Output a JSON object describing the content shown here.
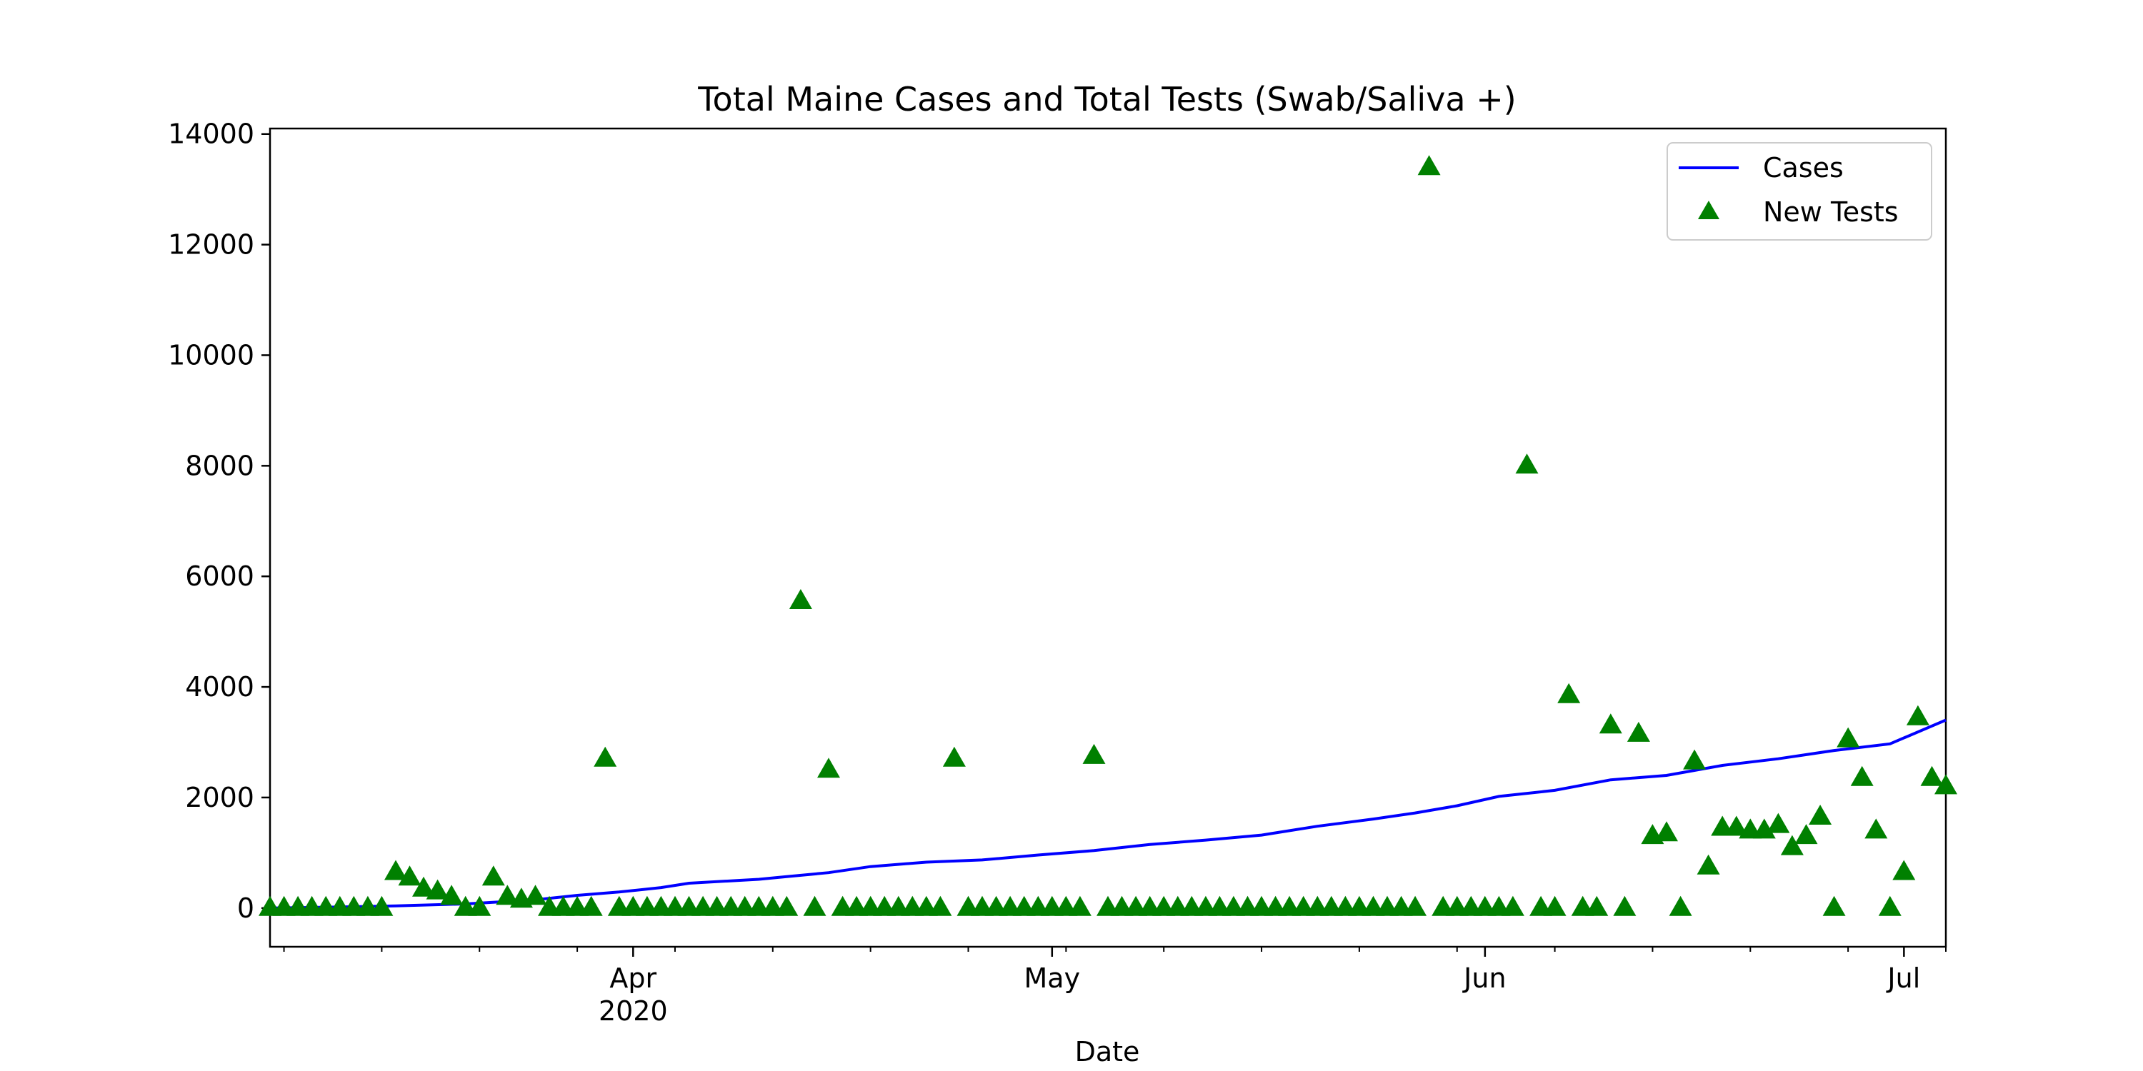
{
  "chart_data": {
    "type": "scatter",
    "title": "Total Maine Cases and Total Tests (Swab/Saliva +)",
    "xlabel": "Date",
    "ylabel": "",
    "x_range": [
      "2020-03-06",
      "2020-07-04"
    ],
    "ylim": [
      -700,
      14100
    ],
    "grid": false,
    "legend_placement": "top-right",
    "colors": {
      "cases": "#0000ff",
      "tests": "#008000"
    },
    "x_ticks": [
      {
        "date": "2020-04-01",
        "label": "Apr",
        "sublabel": "2020"
      },
      {
        "date": "2020-05-01",
        "label": "May",
        "sublabel": ""
      },
      {
        "date": "2020-06-01",
        "label": "Jun",
        "sublabel": ""
      },
      {
        "date": "2020-07-01",
        "label": "Jul",
        "sublabel": ""
      }
    ],
    "y_ticks": [
      0,
      2000,
      4000,
      6000,
      8000,
      10000,
      12000,
      14000
    ],
    "series": [
      {
        "name": "Cases",
        "type": "line",
        "points": [
          [
            "2020-03-06",
            0
          ],
          [
            "2020-03-10",
            15
          ],
          [
            "2020-03-15",
            40
          ],
          [
            "2020-03-20",
            75
          ],
          [
            "2020-03-25",
            150
          ],
          [
            "2020-03-28",
            230
          ],
          [
            "2020-03-31",
            290
          ],
          [
            "2020-04-03",
            370
          ],
          [
            "2020-04-05",
            450
          ],
          [
            "2020-04-10",
            520
          ],
          [
            "2020-04-12",
            570
          ],
          [
            "2020-04-15",
            640
          ],
          [
            "2020-04-18",
            750
          ],
          [
            "2020-04-22",
            830
          ],
          [
            "2020-04-26",
            870
          ],
          [
            "2020-04-30",
            960
          ],
          [
            "2020-05-04",
            1040
          ],
          [
            "2020-05-08",
            1150
          ],
          [
            "2020-05-12",
            1230
          ],
          [
            "2020-05-16",
            1320
          ],
          [
            "2020-05-20",
            1480
          ],
          [
            "2020-05-24",
            1610
          ],
          [
            "2020-05-27",
            1720
          ],
          [
            "2020-05-30",
            1850
          ],
          [
            "2020-06-02",
            2020
          ],
          [
            "2020-06-06",
            2130
          ],
          [
            "2020-06-10",
            2320
          ],
          [
            "2020-06-14",
            2400
          ],
          [
            "2020-06-18",
            2580
          ],
          [
            "2020-06-22",
            2700
          ],
          [
            "2020-06-26",
            2850
          ],
          [
            "2020-06-30",
            2970
          ],
          [
            "2020-07-04",
            3400
          ]
        ]
      },
      {
        "name": "New Tests",
        "type": "scatter",
        "marker": "triangle",
        "points": [
          [
            "2020-03-06",
            0
          ],
          [
            "2020-03-07",
            0
          ],
          [
            "2020-03-08",
            0
          ],
          [
            "2020-03-09",
            0
          ],
          [
            "2020-03-10",
            0
          ],
          [
            "2020-03-11",
            0
          ],
          [
            "2020-03-12",
            0
          ],
          [
            "2020-03-13",
            0
          ],
          [
            "2020-03-14",
            0
          ],
          [
            "2020-03-15",
            650
          ],
          [
            "2020-03-16",
            550
          ],
          [
            "2020-03-17",
            350
          ],
          [
            "2020-03-18",
            300
          ],
          [
            "2020-03-19",
            200
          ],
          [
            "2020-03-20",
            0
          ],
          [
            "2020-03-21",
            0
          ],
          [
            "2020-03-22",
            550
          ],
          [
            "2020-03-23",
            200
          ],
          [
            "2020-03-24",
            150
          ],
          [
            "2020-03-25",
            200
          ],
          [
            "2020-03-26",
            0
          ],
          [
            "2020-03-27",
            0
          ],
          [
            "2020-03-28",
            0
          ],
          [
            "2020-03-29",
            0
          ],
          [
            "2020-03-30",
            2700
          ],
          [
            "2020-03-31",
            0
          ],
          [
            "2020-04-01",
            0
          ],
          [
            "2020-04-02",
            0
          ],
          [
            "2020-04-03",
            0
          ],
          [
            "2020-04-04",
            0
          ],
          [
            "2020-04-05",
            0
          ],
          [
            "2020-04-06",
            0
          ],
          [
            "2020-04-07",
            0
          ],
          [
            "2020-04-08",
            0
          ],
          [
            "2020-04-09",
            0
          ],
          [
            "2020-04-10",
            0
          ],
          [
            "2020-04-11",
            0
          ],
          [
            "2020-04-12",
            0
          ],
          [
            "2020-04-13",
            5550
          ],
          [
            "2020-04-14",
            0
          ],
          [
            "2020-04-15",
            2500
          ],
          [
            "2020-04-16",
            0
          ],
          [
            "2020-04-17",
            0
          ],
          [
            "2020-04-18",
            0
          ],
          [
            "2020-04-19",
            0
          ],
          [
            "2020-04-20",
            0
          ],
          [
            "2020-04-21",
            0
          ],
          [
            "2020-04-22",
            0
          ],
          [
            "2020-04-23",
            0
          ],
          [
            "2020-04-24",
            2700
          ],
          [
            "2020-04-25",
            0
          ],
          [
            "2020-04-26",
            0
          ],
          [
            "2020-04-27",
            0
          ],
          [
            "2020-04-28",
            0
          ],
          [
            "2020-04-29",
            0
          ],
          [
            "2020-04-30",
            0
          ],
          [
            "2020-05-01",
            0
          ],
          [
            "2020-05-02",
            0
          ],
          [
            "2020-05-03",
            0
          ],
          [
            "2020-05-04",
            2750
          ],
          [
            "2020-05-05",
            0
          ],
          [
            "2020-05-06",
            0
          ],
          [
            "2020-05-07",
            0
          ],
          [
            "2020-05-08",
            0
          ],
          [
            "2020-05-09",
            0
          ],
          [
            "2020-05-10",
            0
          ],
          [
            "2020-05-11",
            0
          ],
          [
            "2020-05-12",
            0
          ],
          [
            "2020-05-13",
            0
          ],
          [
            "2020-05-14",
            0
          ],
          [
            "2020-05-15",
            0
          ],
          [
            "2020-05-16",
            0
          ],
          [
            "2020-05-17",
            0
          ],
          [
            "2020-05-18",
            0
          ],
          [
            "2020-05-19",
            0
          ],
          [
            "2020-05-20",
            0
          ],
          [
            "2020-05-21",
            0
          ],
          [
            "2020-05-22",
            0
          ],
          [
            "2020-05-23",
            0
          ],
          [
            "2020-05-24",
            0
          ],
          [
            "2020-05-25",
            0
          ],
          [
            "2020-05-26",
            0
          ],
          [
            "2020-05-27",
            0
          ],
          [
            "2020-05-28",
            13400
          ],
          [
            "2020-05-29",
            0
          ],
          [
            "2020-05-30",
            0
          ],
          [
            "2020-05-31",
            0
          ],
          [
            "2020-06-01",
            0
          ],
          [
            "2020-06-02",
            0
          ],
          [
            "2020-06-03",
            0
          ],
          [
            "2020-06-04",
            8000
          ],
          [
            "2020-06-05",
            0
          ],
          [
            "2020-06-06",
            0
          ],
          [
            "2020-06-07",
            3850
          ],
          [
            "2020-06-08",
            0
          ],
          [
            "2020-06-09",
            0
          ],
          [
            "2020-06-10",
            3300
          ],
          [
            "2020-06-11",
            0
          ],
          [
            "2020-06-12",
            3150
          ],
          [
            "2020-06-13",
            1300
          ],
          [
            "2020-06-14",
            1350
          ],
          [
            "2020-06-15",
            0
          ],
          [
            "2020-06-16",
            2650
          ],
          [
            "2020-06-17",
            750
          ],
          [
            "2020-06-18",
            1450
          ],
          [
            "2020-06-19",
            1450
          ],
          [
            "2020-06-20",
            1400
          ],
          [
            "2020-06-21",
            1400
          ],
          [
            "2020-06-22",
            1500
          ],
          [
            "2020-06-23",
            1100
          ],
          [
            "2020-06-24",
            1300
          ],
          [
            "2020-06-25",
            1650
          ],
          [
            "2020-06-26",
            0
          ],
          [
            "2020-06-27",
            3050
          ],
          [
            "2020-06-28",
            2350
          ],
          [
            "2020-06-29",
            1400
          ],
          [
            "2020-06-30",
            0
          ],
          [
            "2020-07-01",
            650
          ],
          [
            "2020-07-02",
            3450
          ],
          [
            "2020-07-03",
            2350
          ],
          [
            "2020-07-04",
            2200
          ]
        ]
      }
    ]
  }
}
